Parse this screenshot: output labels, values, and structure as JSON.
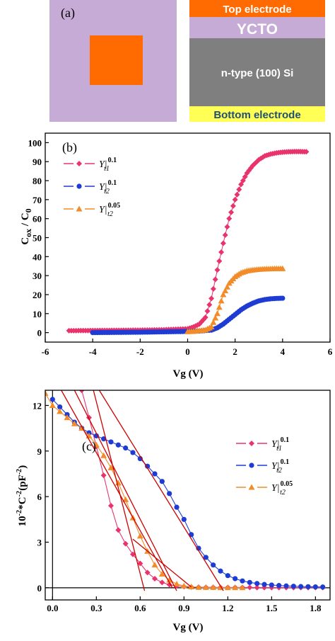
{
  "panel_a": {
    "label": "(a)",
    "layers": [
      {
        "name": "Top electrode",
        "color": "#ff6b00",
        "text_color": "#ffffff"
      },
      {
        "name": "YCTO",
        "color": "#c6abd6",
        "text_color": "#ffffff"
      },
      {
        "name": "n-type (100) Si",
        "color": "#7f7f7f",
        "text_color": "#ffffff"
      },
      {
        "name": "Bottom electrode",
        "color": "#ffff55",
        "text_color": "#1f4e79"
      }
    ],
    "top_view_colors": {
      "substrate": "#c6abd6",
      "electrode": "#ff6b00"
    }
  },
  "chart_data": [
    {
      "type": "scatter",
      "panel_label": "(b)",
      "xlabel": "Vg (V)",
      "ylabel": "Cox / C0",
      "ylabel_main": "C",
      "ylabel_num_sub": "ox",
      "ylabel_slash": " / C",
      "ylabel_den_sub": "0",
      "xlim": [
        -6,
        6
      ],
      "ylim": [
        -5,
        105
      ],
      "xticks": [
        -6,
        -4,
        -2,
        0,
        2,
        4,
        6
      ],
      "yticks": [
        0,
        10,
        20,
        30,
        40,
        50,
        60,
        70,
        80,
        90,
        100
      ],
      "legend_position": "top-left",
      "series": [
        {
          "name_main": "Y|",
          "name_sup": "0.1",
          "name_sub": "t1",
          "color": "#e8336d",
          "marker": "diamond",
          "x": [
            -5,
            -4,
            -3,
            -2,
            -1,
            0,
            0.25,
            0.5,
            0.75,
            1.0,
            1.25,
            1.5,
            1.75,
            2.0,
            2.25,
            2.5,
            2.75,
            3.0,
            3.25,
            3.5,
            3.75,
            4.0,
            4.25,
            4.5,
            4.75,
            5.0
          ],
          "y": [
            1.0,
            1.1,
            1.2,
            1.3,
            1.5,
            2.0,
            3.0,
            4.5,
            8,
            18,
            33,
            47,
            60,
            70,
            78,
            84,
            88,
            91,
            93,
            94,
            94.6,
            95,
            95.2,
            95.3,
            95.3,
            95.2
          ]
        },
        {
          "name_main": "Y|",
          "name_sup": "0.1",
          "name_sub": "t2",
          "color": "#1e3cd4",
          "marker": "circle",
          "x": [
            -4,
            -3,
            -2,
            -1,
            0,
            0.5,
            1.0,
            1.25,
            1.5,
            1.75,
            2.0,
            2.25,
            2.5,
            2.75,
            3.0,
            3.25,
            3.5,
            3.75,
            4.0
          ],
          "y": [
            0,
            0.1,
            0.2,
            0.4,
            0.6,
            0.8,
            1.3,
            2.5,
            4.5,
            7,
            9.5,
            12,
            14,
            15.5,
            16.7,
            17.4,
            17.8,
            18.0,
            18.1
          ]
        },
        {
          "name_main": "Y|",
          "name_sup": "0.05",
          "name_sub": "t2",
          "color": "#f28c28",
          "marker": "triangle",
          "x": [
            0,
            0.25,
            0.5,
            0.75,
            1.0,
            1.25,
            1.5,
            1.75,
            2.0,
            2.25,
            2.5,
            2.75,
            3.0,
            3.25,
            3.5,
            3.75,
            4.0
          ],
          "y": [
            0.5,
            0.7,
            1.0,
            1.4,
            3,
            10,
            20,
            26,
            29.5,
            31.5,
            32.5,
            33,
            33.3,
            33.5,
            33.6,
            33.7,
            33.7
          ]
        }
      ]
    },
    {
      "type": "scatter",
      "panel_label": "(c)",
      "xlabel": "Vg (V)",
      "ylabel": "10-2*C-2 (pF-2)",
      "ylabel_parts": [
        [
          "10",
          false
        ],
        [
          "-2",
          true
        ],
        [
          "*C",
          false
        ],
        [
          "-2",
          true
        ],
        [
          " (pF",
          false
        ],
        [
          "-2",
          true
        ],
        [
          ")",
          false
        ]
      ],
      "xlim": [
        -0.05,
        1.9
      ],
      "ylim": [
        -0.8,
        13
      ],
      "xticks": [
        0.0,
        0.3,
        0.6,
        0.9,
        1.2,
        1.5,
        1.8
      ],
      "xtick_labels": [
        "0.0",
        "0.3",
        "0.6",
        "0.9",
        "1.2",
        "1.5",
        "1.8"
      ],
      "yticks": [
        0,
        3,
        6,
        9,
        12
      ],
      "legend_position": "right",
      "series": [
        {
          "name_main": "Y|",
          "name_sup": "0.1",
          "name_sub": "t1",
          "color": "#e8336d",
          "marker": "diamond",
          "x": [
            0.2,
            0.25,
            0.3,
            0.35,
            0.4,
            0.45,
            0.5,
            0.55,
            0.6,
            0.65,
            0.7,
            0.75,
            0.8,
            0.85,
            0.9,
            0.95,
            1.0,
            1.05,
            1.1,
            1.15,
            1.2,
            1.25,
            1.3,
            1.35,
            1.4,
            1.45,
            1.5,
            1.55,
            1.6,
            1.65,
            1.7,
            1.75,
            1.8,
            1.85
          ],
          "y": [
            13,
            11.2,
            9.3,
            7.4,
            5.4,
            3.8,
            2.9,
            2.2,
            1.6,
            1.0,
            0.6,
            0.35,
            0.2,
            0.12,
            0.08,
            0.05,
            0.04,
            0.03,
            0.03,
            0.02,
            0.02,
            0.02,
            0.02,
            0.02,
            0.01,
            0.01,
            0.01,
            0.01,
            0.01,
            0.01,
            0.01,
            0.01,
            0.01,
            0.01
          ]
        },
        {
          "name_main": "Y|",
          "name_sup": "0.1",
          "name_sub": "t2",
          "color": "#1e3cd4",
          "marker": "circle",
          "x": [
            0.0,
            0.05,
            0.1,
            0.15,
            0.2,
            0.25,
            0.3,
            0.35,
            0.4,
            0.45,
            0.5,
            0.55,
            0.6,
            0.65,
            0.7,
            0.75,
            0.8,
            0.85,
            0.9,
            0.95,
            1.0,
            1.05,
            1.1,
            1.15,
            1.2,
            1.25,
            1.3,
            1.35,
            1.4,
            1.45,
            1.5,
            1.55,
            1.6,
            1.65,
            1.7,
            1.75,
            1.8,
            1.85
          ],
          "y": [
            12.4,
            11.9,
            11.4,
            10.9,
            10.5,
            10.2,
            10.0,
            9.8,
            9.6,
            9.4,
            9.2,
            8.9,
            8.5,
            8.0,
            7.5,
            7.0,
            6.2,
            5.3,
            4.5,
            3.5,
            2.6,
            2.0,
            1.5,
            1.1,
            0.8,
            0.6,
            0.45,
            0.35,
            0.28,
            0.22,
            0.18,
            0.15,
            0.12,
            0.1,
            0.08,
            0.07,
            0.06,
            0.05
          ]
        },
        {
          "name_main": "Y|",
          "name_sup": "0.05",
          "name_sub": "t2",
          "color": "#f28c28",
          "marker": "triangle",
          "x": [
            -0.05,
            0.0,
            0.05,
            0.1,
            0.15,
            0.2,
            0.25,
            0.3,
            0.35,
            0.4,
            0.45,
            0.5,
            0.55,
            0.6,
            0.65,
            0.7,
            0.75,
            0.8,
            0.85,
            0.9,
            0.95,
            1.0,
            1.05,
            1.1,
            1.15,
            1.2,
            1.25,
            1.3
          ],
          "y": [
            12.8,
            12.0,
            11.6,
            11.2,
            10.8,
            10.5,
            10.0,
            9.4,
            8.7,
            7.9,
            6.9,
            5.8,
            4.6,
            3.4,
            2.4,
            1.5,
            0.9,
            0.5,
            0.25,
            0.12,
            0.06,
            0.03,
            0.02,
            0.02,
            0.01,
            0.01,
            0.01,
            0.01
          ]
        }
      ],
      "fit_lines_color": "#cc0000",
      "fit_lines": [
        {
          "p1": [
            0.28,
            13
          ],
          "p2": [
            0.63,
            -0.2
          ]
        },
        {
          "p1": [
            0.15,
            13
          ],
          "p2": [
            0.85,
            -0.2
          ]
        },
        {
          "p1": [
            0.32,
            13
          ],
          "p2": [
            1.17,
            -0.2
          ]
        },
        {
          "p1": [
            0.06,
            13
          ],
          "p2": [
            0.82,
            0.0
          ]
        },
        {
          "p1": [
            0.55,
            3.2
          ],
          "p2": [
            0.95,
            0.05
          ]
        }
      ],
      "reference_lines": [
        "x=0",
        "y=0"
      ]
    }
  ]
}
